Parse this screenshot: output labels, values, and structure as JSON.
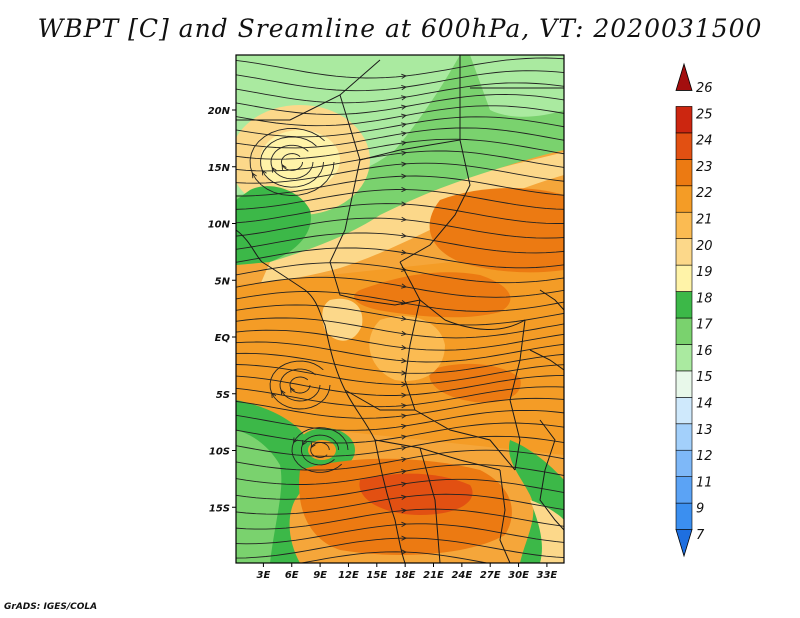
{
  "title": "WBPT [C] and Sreamline at 600hPa, VT: 2020031500",
  "credit": "GrADS: IGES/COLA",
  "map": {
    "lat_labels": [
      {
        "label": "20N",
        "lat": 20
      },
      {
        "label": "15N",
        "lat": 15
      },
      {
        "label": "10N",
        "lat": 10
      },
      {
        "label": "5N",
        "lat": 5
      },
      {
        "label": "EQ",
        "lat": 0
      },
      {
        "label": "5S",
        "lat": -5
      },
      {
        "label": "10S",
        "lat": -10
      },
      {
        "label": "15S",
        "lat": -15
      }
    ],
    "lon_labels": [
      {
        "label": "3E",
        "lon": 3
      },
      {
        "label": "6E",
        "lon": 6
      },
      {
        "label": "9E",
        "lon": 9
      },
      {
        "label": "12E",
        "lon": 12
      },
      {
        "label": "15E",
        "lon": 15
      },
      {
        "label": "18E",
        "lon": 18
      },
      {
        "label": "21E",
        "lon": 21
      },
      {
        "label": "24E",
        "lon": 24
      },
      {
        "label": "27E",
        "lon": 27
      },
      {
        "label": "30E",
        "lon": 30
      },
      {
        "label": "33E",
        "lon": 33
      }
    ]
  },
  "colorbar": {
    "labels": [
      "7",
      "9",
      "11",
      "12",
      "13",
      "14",
      "15",
      "16",
      "17",
      "18",
      "19",
      "20",
      "21",
      "22",
      "23",
      "24",
      "25",
      "26"
    ],
    "colors": [
      "#1e6fe0",
      "#3b8ff0",
      "#5ba3f5",
      "#7eb8f8",
      "#a3d0fb",
      "#cfe9fc",
      "#e8f8ea",
      "#aaeaa0",
      "#7ad26e",
      "#3cb848",
      "#fff3a8",
      "#fcd88a",
      "#fbbb52",
      "#f49c26",
      "#ec7a12",
      "#e25012",
      "#cc2610",
      "#a30e0e"
    ]
  }
}
